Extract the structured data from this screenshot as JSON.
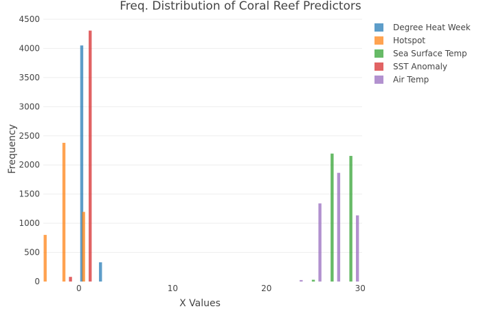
{
  "chart_data": {
    "type": "bar",
    "title": "Freq. Distribution of Coral Reef Predictors",
    "xlabel": "X Values",
    "ylabel": "Frequency",
    "xlim": [
      -3.8,
      30.2
    ],
    "ylim": [
      0,
      4500
    ],
    "x_ticks": [
      0,
      10,
      20,
      30
    ],
    "y_ticks": [
      0,
      500,
      1000,
      1500,
      2000,
      2500,
      3000,
      3500,
      4000,
      4500
    ],
    "grid": true,
    "legend_position": "top-right",
    "series": [
      {
        "name": "Degree Heat Week",
        "color": "#1f77b4",
        "points": [
          {
            "x": 0.3,
            "y": 4050
          },
          {
            "x": 2.3,
            "y": 330
          }
        ]
      },
      {
        "name": "Hotspot",
        "color": "#ff7f0e",
        "points": [
          {
            "x": -3.6,
            "y": 800
          },
          {
            "x": -1.6,
            "y": 2380
          },
          {
            "x": 0.5,
            "y": 1195
          }
        ]
      },
      {
        "name": "Sea Surface Temp",
        "color": "#2ca02c",
        "points": [
          {
            "x": 25.0,
            "y": 30
          },
          {
            "x": 27.0,
            "y": 2195
          },
          {
            "x": 29.0,
            "y": 2155
          }
        ]
      },
      {
        "name": "SST Anomaly",
        "color": "#d62728",
        "points": [
          {
            "x": -0.9,
            "y": 80
          },
          {
            "x": 1.2,
            "y": 4305
          }
        ]
      },
      {
        "name": "Air Temp",
        "color": "#9467bd",
        "points": [
          {
            "x": 23.7,
            "y": 25
          },
          {
            "x": 25.7,
            "y": 1340
          },
          {
            "x": 27.7,
            "y": 1865
          },
          {
            "x": 29.7,
            "y": 1135
          }
        ]
      }
    ]
  }
}
